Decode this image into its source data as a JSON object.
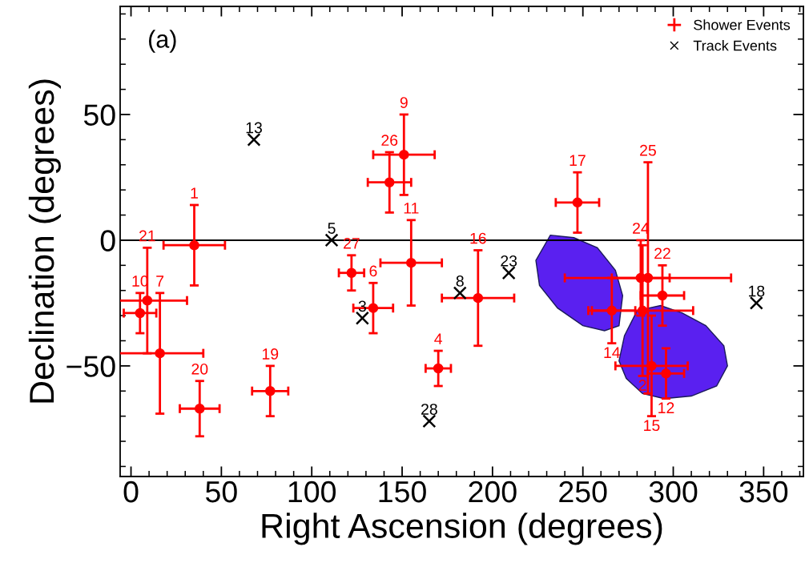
{
  "chart_data": {
    "type": "scatter",
    "xlabel": "Right Ascension (degrees)",
    "ylabel": "Declination (degrees)",
    "xlim": [
      -6,
      372
    ],
    "ylim": [
      -94,
      93
    ],
    "xticks": [
      0,
      50,
      100,
      150,
      200,
      250,
      300,
      350
    ],
    "yticks": [
      {
        "value": -50,
        "label": "−50"
      },
      0,
      50
    ],
    "grid": false,
    "legend": "top right",
    "ref_lines": [
      {
        "axis": "y",
        "value": 0,
        "color": "#000000"
      }
    ],
    "series": [
      {
        "name": "Shower Events",
        "color": "#ff0000",
        "marker": "circle",
        "x": [
          35,
          283,
          170,
          134,
          16,
          151,
          5,
          155,
          296,
          266,
          288,
          192,
          247,
          77,
          38,
          9,
          294,
          282,
          286,
          143,
          122
        ],
        "values": [
          -2,
          -28,
          -51,
          -27,
          -45,
          34,
          -29,
          -9,
          -53,
          -28,
          -50,
          -23,
          15,
          -60,
          -67,
          -24,
          -22,
          -15,
          -15,
          23,
          -13
        ],
        "xerrors": [
          17,
          28,
          7,
          11,
          24,
          17,
          9,
          17,
          10,
          13,
          20,
          20,
          12,
          10,
          11,
          22,
          12,
          16,
          46,
          12,
          7
        ],
        "errors": [
          16,
          26,
          7,
          10,
          24,
          16,
          8,
          17,
          10,
          13,
          20,
          19,
          12,
          10,
          11,
          21,
          12,
          15,
          46,
          12,
          7
        ]
      },
      {
        "name": "Track Events",
        "color": "#000000",
        "marker": "cross",
        "x": [
          128,
          111,
          182,
          68,
          346,
          209,
          165
        ],
        "values": [
          -31,
          0,
          -21,
          40,
          -25,
          -13,
          -72
        ]
      }
    ],
    "annotations": [
      "(a)",
      {
        "text": "1",
        "x": 35,
        "y": 14
      },
      {
        "text": "2",
        "x": 283,
        "y": -54
      },
      {
        "text": "4",
        "x": 170,
        "y": -44
      },
      {
        "text": "6",
        "x": 134,
        "y": -17
      },
      {
        "text": "7",
        "x": 16,
        "y": -21
      },
      {
        "text": "9",
        "x": 151,
        "y": 50
      },
      {
        "text": "10",
        "x": 5,
        "y": -21
      },
      {
        "text": "11",
        "x": 155,
        "y": 8
      },
      {
        "text": "12",
        "x": 296,
        "y": -63
      },
      {
        "text": "14",
        "x": 266,
        "y": -41
      },
      {
        "text": "15",
        "x": 288,
        "y": -70
      },
      {
        "text": "16",
        "x": 192,
        "y": -4
      },
      {
        "text": "17",
        "x": 247,
        "y": 27
      },
      {
        "text": "19",
        "x": 77,
        "y": -50
      },
      {
        "text": "20",
        "x": 38,
        "y": -56
      },
      {
        "text": "21",
        "x": 9,
        "y": -3
      },
      {
        "text": "22",
        "x": 294,
        "y": -10
      },
      {
        "text": "24",
        "x": 282,
        "y": 0
      },
      {
        "text": "25",
        "x": 286,
        "y": 31
      },
      {
        "text": "26",
        "x": 143,
        "y": 35
      },
      {
        "text": "27",
        "x": 122,
        "y": -6
      },
      {
        "text": "3",
        "x": 128,
        "y": -31
      },
      {
        "text": "5",
        "x": 111,
        "y": 0
      },
      {
        "text": "8",
        "x": 182,
        "y": -21
      },
      {
        "text": "13",
        "x": 68,
        "y": 40
      },
      {
        "text": "18",
        "x": 346,
        "y": -25
      },
      {
        "text": "23",
        "x": 209,
        "y": -13
      },
      {
        "text": "28",
        "x": 165,
        "y": -72
      }
    ]
  }
}
